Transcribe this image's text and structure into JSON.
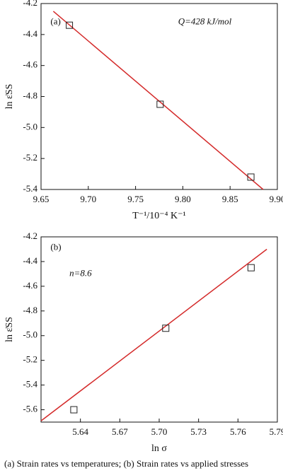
{
  "chart_data": [
    {
      "type": "scatter",
      "label": "(a)",
      "annotation": "Q=428 kJ/mol",
      "xlabel": "T⁻¹/10⁻⁴ K⁻¹",
      "ylabel": "ln ε̇SS",
      "x": [
        9.68,
        9.776,
        9.872
      ],
      "values": [
        -4.34,
        -4.85,
        -5.32
      ],
      "marker_color": "#222222",
      "fit": {
        "x": [
          9.663,
          9.885
        ],
        "values": [
          -4.25,
          -5.4
        ],
        "color": "#d42a2a"
      },
      "xlim": [
        9.65,
        9.9
      ],
      "ylim": [
        -5.4,
        -4.2
      ],
      "xticks": [
        9.65,
        {
          "value": 9.7,
          "label": "9.70"
        },
        9.75,
        {
          "value": 9.8,
          "label": "9.80"
        },
        9.85,
        {
          "value": 9.9,
          "label": "9.90"
        }
      ],
      "yticks": [
        -4.2,
        -4.4,
        -4.6,
        -4.8,
        {
          "value": -5,
          "label": "-5.0"
        },
        -5.2,
        -5.4
      ]
    },
    {
      "type": "scatter",
      "label": "(b)",
      "annotation": "n=8.6",
      "xlabel": "ln σ",
      "ylabel": "ln ε̇SS",
      "x": [
        5.635,
        5.705,
        5.77
      ],
      "values": [
        -5.6,
        -4.94,
        -4.45
      ],
      "marker_color": "#222222",
      "fit": {
        "x": [
          5.61,
          5.782
        ],
        "values": [
          -5.69,
          -4.3
        ],
        "color": "#d42a2a"
      },
      "xlim": [
        5.61,
        5.79
      ],
      "ylim": [
        -5.7,
        -4.2
      ],
      "xticks": [
        5.64,
        5.67,
        {
          "value": 5.7,
          "label": "5.70"
        },
        5.73,
        5.76,
        5.79
      ],
      "yticks": [
        -4.2,
        -4.4,
        -4.6,
        -4.8,
        {
          "value": -5,
          "label": "-5.0"
        },
        -5.2,
        -5.4,
        -5.6
      ]
    }
  ],
  "caption": "(a) Strain rates vs temperatures; (b) Strain rates vs applied stresses"
}
